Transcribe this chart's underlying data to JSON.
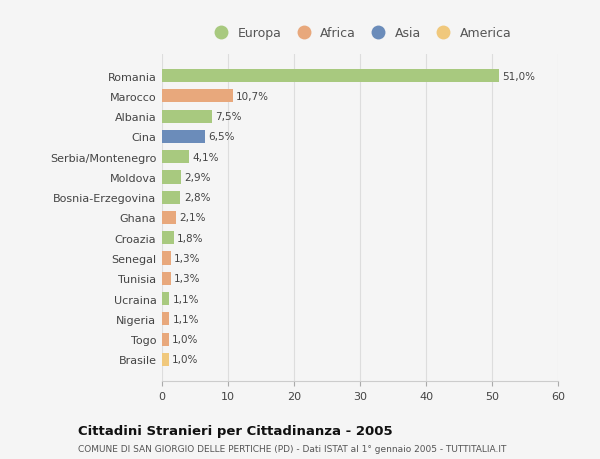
{
  "countries": [
    "Romania",
    "Marocco",
    "Albania",
    "Cina",
    "Serbia/Montenegro",
    "Moldova",
    "Bosnia-Erzegovina",
    "Ghana",
    "Croazia",
    "Senegal",
    "Tunisia",
    "Ucraina",
    "Nigeria",
    "Togo",
    "Brasile"
  ],
  "values": [
    51.0,
    10.7,
    7.5,
    6.5,
    4.1,
    2.9,
    2.8,
    2.1,
    1.8,
    1.3,
    1.3,
    1.1,
    1.1,
    1.0,
    1.0
  ],
  "labels": [
    "51,0%",
    "10,7%",
    "7,5%",
    "6,5%",
    "4,1%",
    "2,9%",
    "2,8%",
    "2,1%",
    "1,8%",
    "1,3%",
    "1,3%",
    "1,1%",
    "1,1%",
    "1,0%",
    "1,0%"
  ],
  "colors": [
    "#a8c97f",
    "#e8a87c",
    "#a8c97f",
    "#6b8cba",
    "#a8c97f",
    "#a8c97f",
    "#a8c97f",
    "#e8a87c",
    "#a8c97f",
    "#e8a87c",
    "#e8a87c",
    "#a8c97f",
    "#e8a87c",
    "#e8a87c",
    "#f0c87c"
  ],
  "legend_labels": [
    "Europa",
    "Africa",
    "Asia",
    "America"
  ],
  "legend_colors": [
    "#a8c97f",
    "#e8a87c",
    "#6b8cba",
    "#f0c87c"
  ],
  "title": "Cittadini Stranieri per Cittadinanza - 2005",
  "subtitle": "COMUNE DI SAN GIORGIO DELLE PERTICHE (PD) - Dati ISTAT al 1° gennaio 2005 - TUTTITALIA.IT",
  "xlim": [
    0,
    60
  ],
  "xticks": [
    0,
    10,
    20,
    30,
    40,
    50,
    60
  ],
  "bg_color": "#f5f5f5",
  "grid_color": "#dddddd"
}
